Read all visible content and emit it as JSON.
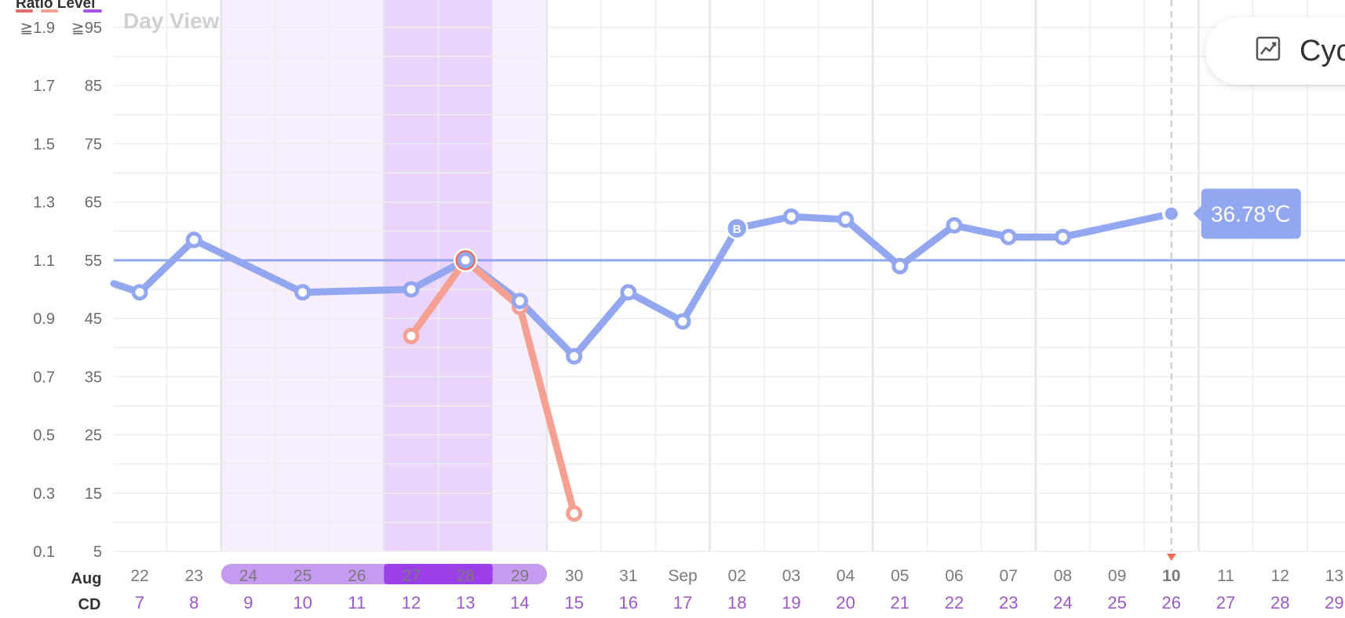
{
  "header": {
    "legend_label": "Ratio Level",
    "title": "Day View",
    "threshold_ratio": "≧1.9",
    "threshold_level": "≧95",
    "side_button_label": "Cycle",
    "side_button_icon": "chart-icon"
  },
  "rows": {
    "month_label": "Aug",
    "cd_label": "CD"
  },
  "colors": {
    "temperature": "#92a7f0",
    "ratio": "#f5a093",
    "peak": "#ef6a55",
    "fertile_light": "#f7effd",
    "fertile_dark": "#ead4fb",
    "fertile_pill_light": "#c79af2",
    "fertile_pill_dark": "#9b3fe8",
    "cd_text": "#9b59c8"
  },
  "chart_data": {
    "type": "line",
    "title": "Day View",
    "x": [
      "22",
      "23",
      "24",
      "25",
      "26",
      "27",
      "28",
      "29",
      "30",
      "31",
      "Sep",
      "02",
      "03",
      "04",
      "05",
      "06",
      "07",
      "08",
      "09",
      "10",
      "11",
      "12",
      "13"
    ],
    "cycle_day": [
      7,
      8,
      9,
      10,
      11,
      12,
      13,
      14,
      15,
      16,
      17,
      18,
      19,
      20,
      21,
      22,
      23,
      24,
      25,
      26,
      27,
      28,
      29
    ],
    "selected_x": "10",
    "fertile_window": [
      "24",
      "25",
      "26",
      "27",
      "28",
      "29"
    ],
    "peak_days": [
      "27",
      "28"
    ],
    "y_left": {
      "label": "Ratio",
      "ticks": [
        "0.1",
        "0.3",
        "0.5",
        "0.7",
        "0.9",
        "1.1",
        "1.3",
        "1.5",
        "1.7",
        "≧1.9"
      ],
      "ylim": [
        0.1,
        1.9
      ]
    },
    "y_right": {
      "label": "Level",
      "ticks": [
        "5",
        "15",
        "25",
        "35",
        "45",
        "55",
        "65",
        "75",
        "85",
        "≧95"
      ],
      "ylim": [
        5,
        95
      ]
    },
    "coverline": 1.1,
    "series": [
      {
        "name": "Level",
        "x": [
          "22",
          "23",
          "25",
          "27",
          "28",
          "29",
          "30",
          "31",
          "Sep",
          "02",
          "03",
          "04",
          "05",
          "06",
          "07",
          "08",
          "10"
        ],
        "values": [
          0.99,
          1.17,
          0.99,
          1.0,
          1.1,
          0.96,
          0.77,
          0.99,
          0.89,
          1.21,
          1.25,
          1.24,
          1.08,
          1.22,
          1.18,
          1.18,
          1.26
        ],
        "markers": {
          "02": "B"
        }
      },
      {
        "name": "Ratio",
        "x": [
          "27",
          "28",
          "29",
          "30"
        ],
        "values": [
          0.84,
          1.1,
          0.94,
          0.23
        ],
        "markers": {
          "28": "+"
        }
      }
    ],
    "callout": {
      "x": "10",
      "text": "36.78℃"
    }
  }
}
